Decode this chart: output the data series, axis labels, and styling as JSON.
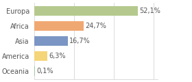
{
  "categories": [
    "Europa",
    "Africa",
    "Asia",
    "America",
    "Oceania"
  ],
  "values": [
    52.1,
    24.7,
    16.7,
    6.3,
    0.1
  ],
  "labels": [
    "52,1%",
    "24,7%",
    "16,7%",
    "6,3%",
    "0,1%"
  ],
  "bar_colors": [
    "#b5c98e",
    "#f0a872",
    "#7b96c4",
    "#f5d57a",
    "#a0c8a0"
  ],
  "background_color": "#ffffff",
  "xlim": [
    0,
    62
  ],
  "text_color": "#555555",
  "bar_height": 0.62,
  "label_fontsize": 7.0,
  "ytick_fontsize": 7.0
}
